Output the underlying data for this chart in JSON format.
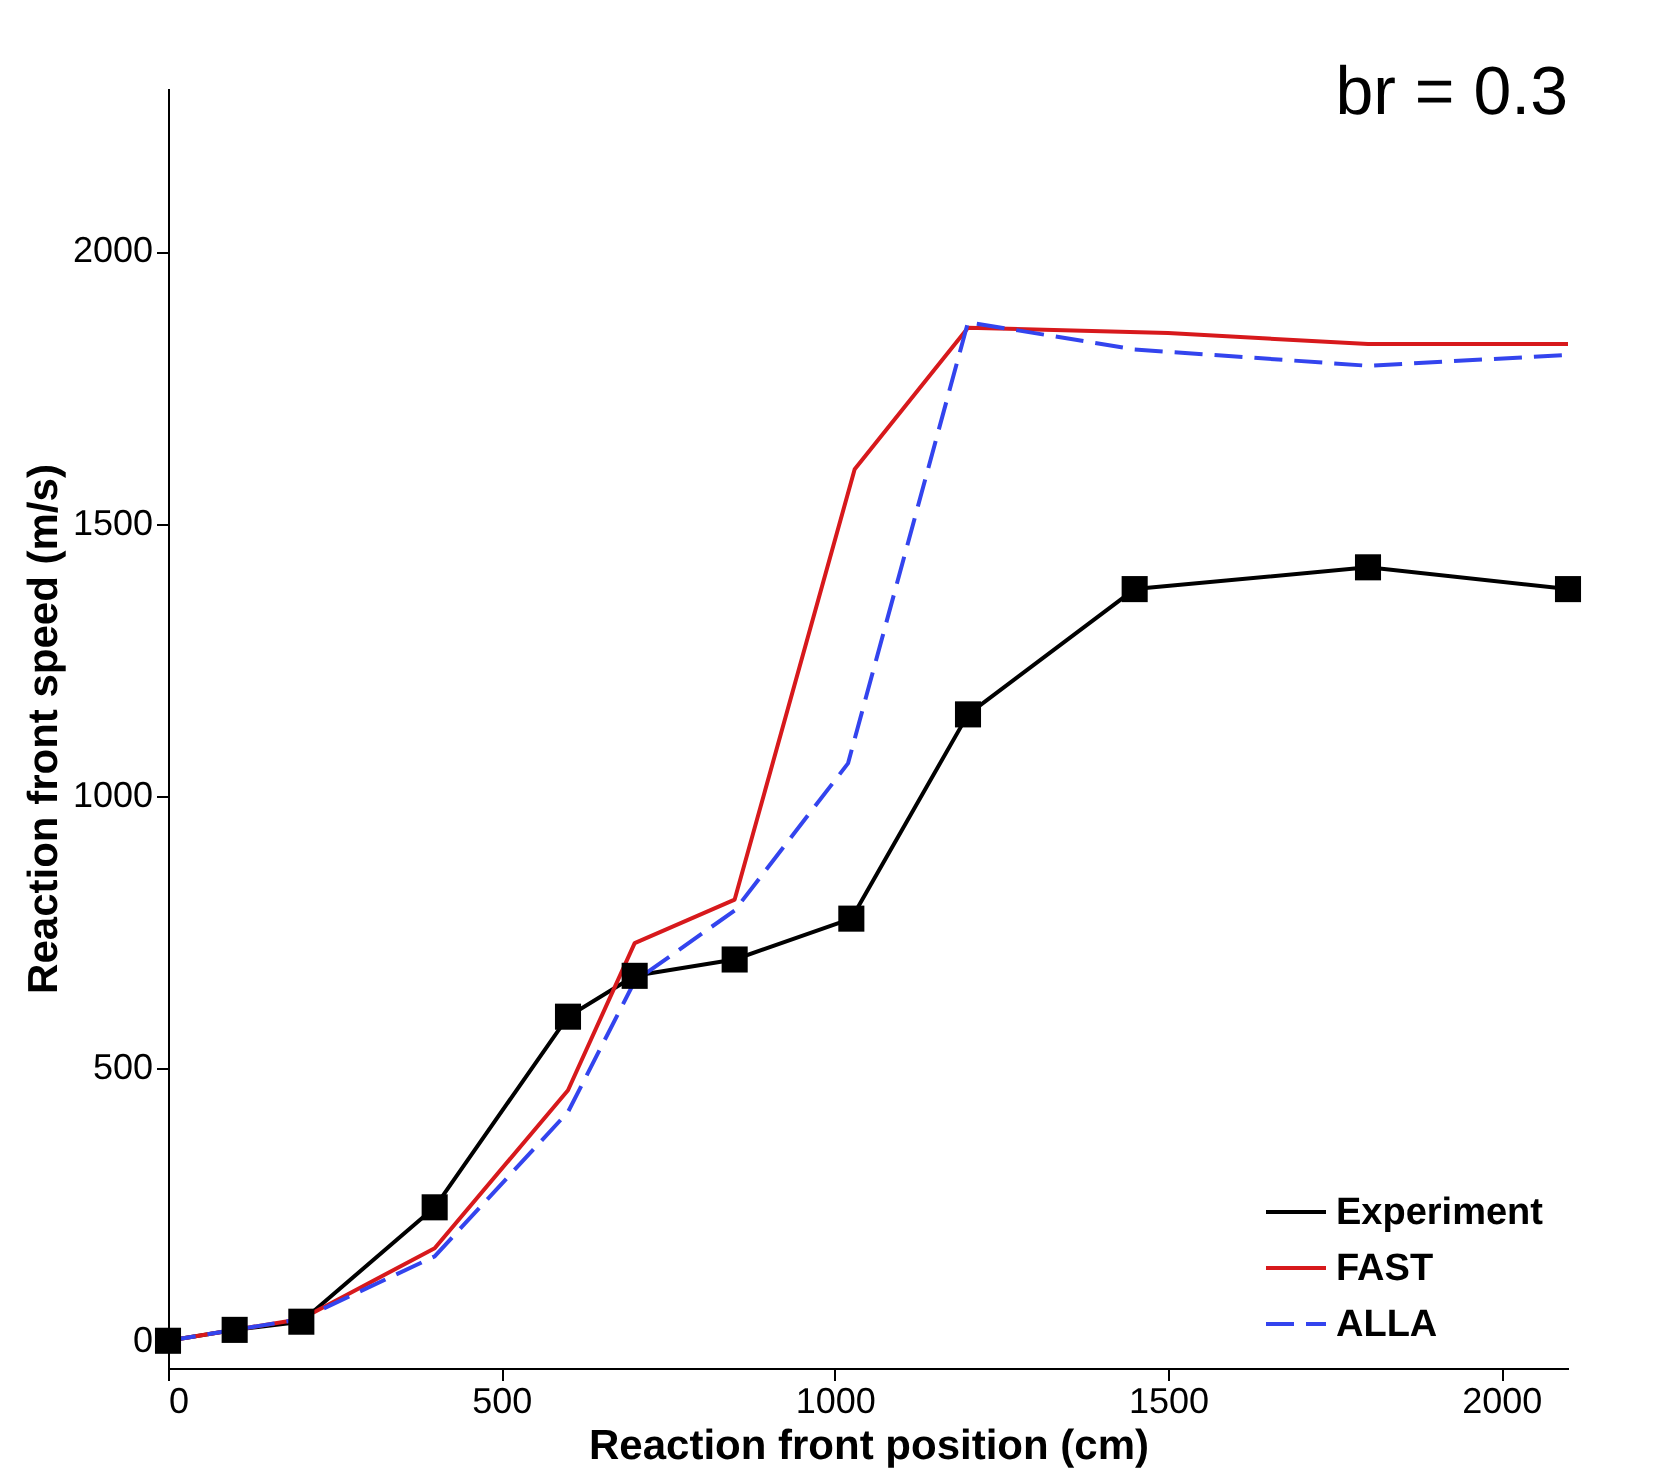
{
  "chart_data": {
    "type": "line",
    "xlabel": "Reaction front position (cm)",
    "ylabel": "Reaction front speed (m/s)",
    "annotations": [
      "br = 0.3"
    ],
    "xlim": [
      0,
      2100
    ],
    "ylim": [
      -50,
      2300
    ],
    "xticks": [
      0,
      500,
      1000,
      1500,
      2000
    ],
    "yticks": [
      0,
      500,
      1000,
      1500,
      2000
    ],
    "grid": false,
    "legend": "bottom right",
    "series": [
      {
        "name": "Experiment",
        "color": "#000000",
        "marker": "square",
        "line_style": "solid",
        "x": [
          0,
          100,
          200,
          400,
          600,
          700,
          850,
          1025,
          1200,
          1450,
          1800,
          2100
        ],
        "values": [
          0,
          20,
          35,
          245,
          595,
          670,
          700,
          775,
          1150,
          1380,
          1420,
          1380
        ]
      },
      {
        "name": "FAST",
        "color": "#d7191c",
        "marker": "none",
        "line_style": "solid",
        "x": [
          0,
          200,
          400,
          600,
          700,
          850,
          1030,
          1200,
          1500,
          1800,
          2100
        ],
        "values": [
          0,
          40,
          170,
          460,
          730,
          810,
          1600,
          1860,
          1850,
          1830,
          1830
        ]
      },
      {
        "name": "ALLA",
        "color": "#3344ee",
        "marker": "none",
        "line_style": "dashed",
        "x": [
          0,
          200,
          400,
          600,
          700,
          850,
          1020,
          1200,
          1450,
          1800,
          2100
        ],
        "values": [
          0,
          40,
          155,
          420,
          660,
          790,
          1060,
          1870,
          1820,
          1790,
          1810
        ]
      }
    ]
  }
}
